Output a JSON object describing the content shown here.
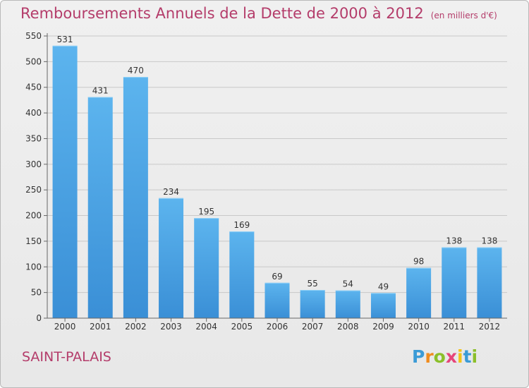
{
  "title": "Remboursements Annuels de la Dette de 2000 à 2012",
  "unit_note": "(en milliers d'€)",
  "place": "SAINT-PALAIS",
  "logo": {
    "letters": [
      "P",
      "r",
      "o",
      "x",
      "i",
      "t",
      "i"
    ],
    "colors": [
      "#3b9bd6",
      "#f08c1e",
      "#8bbf2a",
      "#e6457a",
      "#f2c31a",
      "#3b9bd6",
      "#8bbf2a"
    ]
  },
  "colors": {
    "bar": "#3a8fd6",
    "bar_light": "#5cb4ee",
    "title": "#b43c6a",
    "axis": "#666666",
    "grid": "#c8c8c8"
  },
  "chart_data": {
    "type": "bar",
    "categories": [
      "2000",
      "2001",
      "2002",
      "2003",
      "2004",
      "2005",
      "2006",
      "2007",
      "2008",
      "2009",
      "2010",
      "2011",
      "2012"
    ],
    "values": [
      531,
      431,
      470,
      234,
      195,
      169,
      69,
      55,
      54,
      49,
      98,
      138,
      138
    ],
    "title": "Remboursements Annuels de la Dette de 2000 à 2012",
    "xlabel": "",
    "ylabel": "",
    "ylim": [
      0,
      550
    ],
    "yticks": [
      0,
      50,
      100,
      150,
      200,
      250,
      300,
      350,
      400,
      450,
      500,
      550
    ],
    "grid": true
  }
}
